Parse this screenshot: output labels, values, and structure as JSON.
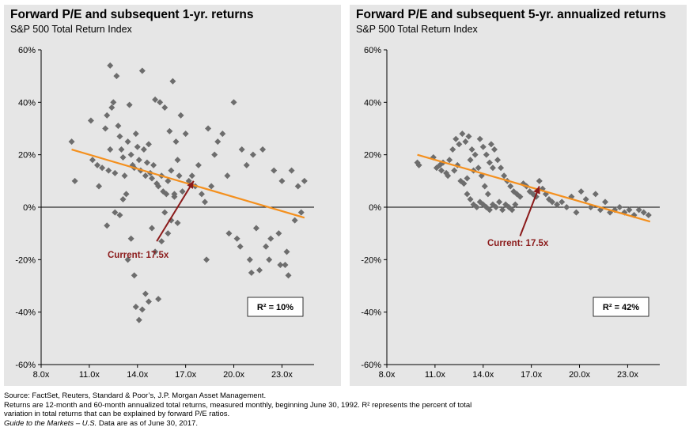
{
  "charts": [
    {
      "title": "Forward P/E and subsequent 1-yr. returns",
      "subtitle": "S&P 500 Total Return Index",
      "annotation": "Current: 17.5x",
      "r2_label": "R² = 10%"
    },
    {
      "title": "Forward P/E and subsequent 5-yr. annualized returns",
      "subtitle": "S&P 500 Total Return Index",
      "annotation": "Current: 17.5x",
      "r2_label": "R² = 42%"
    }
  ],
  "footnotes": {
    "line1": "Source: FactSet, Reuters, Standard & Poor’s, J.P. Morgan Asset Management.",
    "line2": "Returns are 12-month and 60-month annualized total returns, measured monthly, beginning June 30, 1992. R² represents the percent of total",
    "line3": "variation in total returns that can be explained by forward P/E ratios.",
    "line4_italic": "Guide to the Markets – U.S.",
    "line4_rest": " Data are as of June 30, 2017."
  },
  "colors": {
    "marker": "#6d6d6d",
    "trend": "#f4901e",
    "arrow": "#8b1a1a",
    "background": "#e6e6e6"
  },
  "chart_data": [
    {
      "type": "scatter",
      "title": "Forward P/E and subsequent 1-yr. returns",
      "subtitle": "S&P 500 Total Return Index",
      "xlim": [
        8,
        25
      ],
      "ylim": [
        -60,
        60
      ],
      "x_ticks": [
        "8.0x",
        "11.0x",
        "14.0x",
        "17.0x",
        "20.0x",
        "23.0x"
      ],
      "y_ticks": [
        "-60%",
        "-40%",
        "-20%",
        "0%",
        "20%",
        "40%",
        "60%"
      ],
      "trendline": {
        "x": [
          9.9,
          24.4
        ],
        "y": [
          22,
          -4
        ]
      },
      "current_pe": 17.5,
      "annotation": "Current: 17.5x",
      "r_squared": "R² = 10%",
      "points": [
        [
          9.9,
          25
        ],
        [
          10.1,
          10
        ],
        [
          11.1,
          33
        ],
        [
          11.2,
          18
        ],
        [
          11.5,
          16
        ],
        [
          11.8,
          15
        ],
        [
          12.0,
          30
        ],
        [
          12.1,
          35
        ],
        [
          12.3,
          54
        ],
        [
          12.4,
          38
        ],
        [
          12.5,
          40
        ],
        [
          12.3,
          22
        ],
        [
          12.6,
          13
        ],
        [
          12.7,
          50
        ],
        [
          12.8,
          31
        ],
        [
          12.9,
          27
        ],
        [
          13.0,
          22
        ],
        [
          13.1,
          19
        ],
        [
          13.2,
          12
        ],
        [
          13.3,
          5
        ],
        [
          13.4,
          25
        ],
        [
          13.5,
          39
        ],
        [
          13.6,
          20
        ],
        [
          13.7,
          16
        ],
        [
          13.8,
          15
        ],
        [
          13.9,
          28
        ],
        [
          14.0,
          23
        ],
        [
          14.1,
          18
        ],
        [
          14.2,
          14
        ],
        [
          14.3,
          52
        ],
        [
          14.4,
          22
        ],
        [
          14.5,
          12
        ],
        [
          14.6,
          17
        ],
        [
          14.7,
          24
        ],
        [
          14.8,
          13
        ],
        [
          14.9,
          11
        ],
        [
          15.0,
          16
        ],
        [
          15.1,
          41
        ],
        [
          15.2,
          9
        ],
        [
          15.3,
          8
        ],
        [
          15.4,
          40
        ],
        [
          15.5,
          12
        ],
        [
          15.6,
          6
        ],
        [
          15.7,
          38
        ],
        [
          15.8,
          5
        ],
        [
          15.9,
          10
        ],
        [
          16.0,
          29
        ],
        [
          16.1,
          14
        ],
        [
          16.2,
          48
        ],
        [
          16.3,
          4
        ],
        [
          16.4,
          25
        ],
        [
          16.5,
          18
        ],
        [
          16.6,
          12
        ],
        [
          16.7,
          35
        ],
        [
          16.8,
          6
        ],
        [
          17.0,
          28
        ],
        [
          17.2,
          10
        ],
        [
          17.4,
          12
        ],
        [
          17.6,
          8
        ],
        [
          17.8,
          16
        ],
        [
          18.0,
          5
        ],
        [
          18.2,
          2
        ],
        [
          18.4,
          30
        ],
        [
          18.6,
          8
        ],
        [
          18.8,
          20
        ],
        [
          19.0,
          25
        ],
        [
          19.3,
          28
        ],
        [
          19.6,
          12
        ],
        [
          20.0,
          40
        ],
        [
          20.2,
          -12
        ],
        [
          20.5,
          22
        ],
        [
          20.8,
          16
        ],
        [
          21.0,
          -20
        ],
        [
          21.2,
          20
        ],
        [
          21.4,
          -8
        ],
        [
          21.6,
          -24
        ],
        [
          21.8,
          22
        ],
        [
          22.0,
          -15
        ],
        [
          22.2,
          -20
        ],
        [
          22.5,
          14
        ],
        [
          22.8,
          -10
        ],
        [
          23.0,
          10
        ],
        [
          23.2,
          -22
        ],
        [
          23.4,
          -26
        ],
        [
          23.6,
          14
        ],
        [
          23.8,
          -5
        ],
        [
          24.0,
          8
        ],
        [
          24.2,
          -2
        ],
        [
          24.4,
          10
        ],
        [
          12.1,
          -7
        ],
        [
          12.6,
          -2
        ],
        [
          12.9,
          -3
        ],
        [
          13.1,
          3
        ],
        [
          13.4,
          -20
        ],
        [
          13.6,
          -12
        ],
        [
          13.8,
          -26
        ],
        [
          13.9,
          -38
        ],
        [
          14.1,
          -43
        ],
        [
          14.3,
          -39
        ],
        [
          14.5,
          -33
        ],
        [
          14.7,
          -36
        ],
        [
          14.9,
          -8
        ],
        [
          15.1,
          -17
        ],
        [
          15.3,
          -35
        ],
        [
          15.5,
          -13
        ],
        [
          15.7,
          -2
        ],
        [
          15.9,
          -10
        ],
        [
          16.1,
          -5
        ],
        [
          16.3,
          5
        ],
        [
          16.5,
          -6
        ],
        [
          18.3,
          -20
        ],
        [
          19.7,
          -10
        ],
        [
          20.4,
          -15
        ],
        [
          21.1,
          -25
        ],
        [
          22.3,
          -12
        ],
        [
          22.9,
          -22
        ],
        [
          23.3,
          -17
        ],
        [
          11.6,
          8
        ],
        [
          12.2,
          14
        ]
      ]
    },
    {
      "type": "scatter",
      "title": "Forward P/E and subsequent 5-yr. annualized returns",
      "subtitle": "S&P 500 Total Return Index",
      "xlim": [
        8,
        25
      ],
      "ylim": [
        -60,
        60
      ],
      "x_ticks": [
        "8.0x",
        "11.0x",
        "14.0x",
        "17.0x",
        "20.0x",
        "23.0x"
      ],
      "y_ticks": [
        "-60%",
        "-40%",
        "-20%",
        "0%",
        "20%",
        "40%",
        "60%"
      ],
      "trendline": {
        "x": [
          9.9,
          24.4
        ],
        "y": [
          20,
          -5.5
        ]
      },
      "current_pe": 17.5,
      "annotation": "Current: 17.5x",
      "r_squared": "R² = 42%",
      "points": [
        [
          9.9,
          17
        ],
        [
          10.0,
          16
        ],
        [
          10.9,
          19
        ],
        [
          11.1,
          15
        ],
        [
          11.3,
          16
        ],
        [
          11.5,
          17
        ],
        [
          11.7,
          13
        ],
        [
          11.9,
          18
        ],
        [
          12.1,
          22
        ],
        [
          12.3,
          26
        ],
        [
          12.5,
          24
        ],
        [
          12.7,
          28
        ],
        [
          12.9,
          25
        ],
        [
          13.1,
          27
        ],
        [
          13.3,
          22
        ],
        [
          13.5,
          20
        ],
        [
          13.7,
          15
        ],
        [
          13.9,
          12
        ],
        [
          14.1,
          8
        ],
        [
          14.3,
          5
        ],
        [
          14.5,
          24
        ],
        [
          14.7,
          22
        ],
        [
          14.9,
          18
        ],
        [
          15.1,
          15
        ],
        [
          15.3,
          12
        ],
        [
          15.5,
          10
        ],
        [
          15.7,
          8
        ],
        [
          15.9,
          6
        ],
        [
          16.1,
          5
        ],
        [
          16.3,
          4
        ],
        [
          16.5,
          9
        ],
        [
          16.7,
          8
        ],
        [
          16.9,
          6
        ],
        [
          17.1,
          5
        ],
        [
          17.3,
          4
        ],
        [
          17.5,
          10
        ],
        [
          17.7,
          7
        ],
        [
          17.9,
          5
        ],
        [
          18.1,
          3
        ],
        [
          18.3,
          2
        ],
        [
          18.6,
          1
        ],
        [
          18.9,
          2
        ],
        [
          19.2,
          0
        ],
        [
          19.5,
          4
        ],
        [
          19.8,
          -2
        ],
        [
          20.1,
          6
        ],
        [
          20.4,
          3
        ],
        [
          20.7,
          0
        ],
        [
          21.0,
          5
        ],
        [
          21.3,
          -1
        ],
        [
          21.6,
          2
        ],
        [
          21.9,
          -2
        ],
        [
          22.2,
          -1
        ],
        [
          22.5,
          0
        ],
        [
          22.8,
          -2
        ],
        [
          23.1,
          -1
        ],
        [
          23.4,
          -3
        ],
        [
          23.7,
          -1
        ],
        [
          24.0,
          -2
        ],
        [
          24.3,
          -3
        ],
        [
          13.0,
          5
        ],
        [
          13.2,
          3
        ],
        [
          13.4,
          1
        ],
        [
          13.6,
          0
        ],
        [
          13.8,
          2
        ],
        [
          14.0,
          1
        ],
        [
          14.2,
          0
        ],
        [
          14.4,
          -1
        ],
        [
          14.6,
          1
        ],
        [
          14.8,
          0
        ],
        [
          15.0,
          2
        ],
        [
          15.2,
          -1
        ],
        [
          15.4,
          1
        ],
        [
          15.6,
          0
        ],
        [
          15.8,
          -1
        ],
        [
          16.0,
          1
        ],
        [
          12.6,
          10
        ],
        [
          12.8,
          9
        ],
        [
          13.0,
          11
        ],
        [
          11.4,
          14
        ],
        [
          11.8,
          12
        ],
        [
          12.2,
          14
        ],
        [
          12.4,
          16
        ],
        [
          13.2,
          18
        ],
        [
          13.4,
          14
        ],
        [
          13.8,
          26
        ],
        [
          14.0,
          23
        ],
        [
          14.2,
          20
        ],
        [
          14.4,
          17
        ],
        [
          14.6,
          15
        ]
      ]
    }
  ]
}
